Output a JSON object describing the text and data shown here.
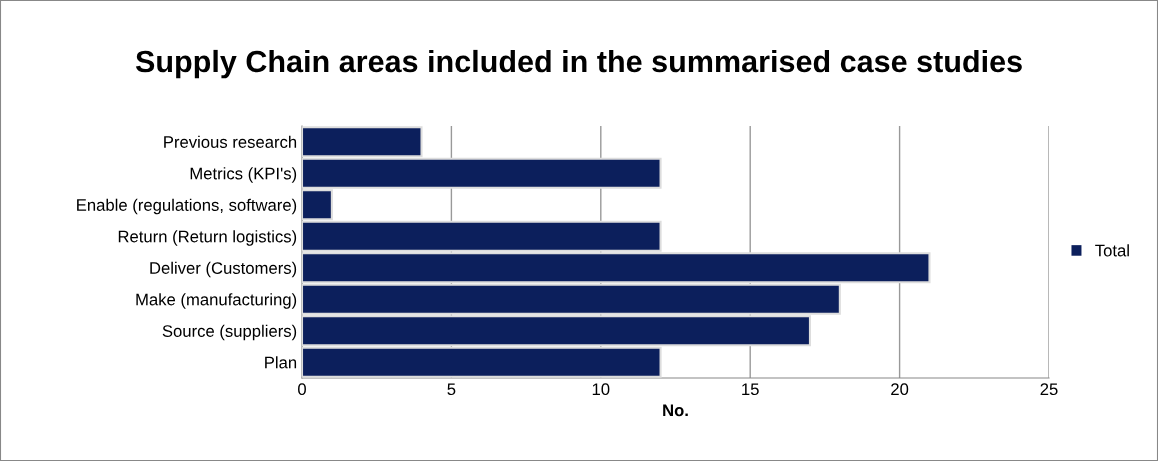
{
  "chart_data": {
    "type": "bar",
    "orientation": "horizontal",
    "title": "Supply Chain areas included in the summarised case studies",
    "xlabel": "No.",
    "categories": [
      "Previous research",
      "Metrics (KPI's)",
      "Enable (regulations, software)",
      "Return (Return logistics)",
      "Deliver (Customers)",
      "Make (manufacturing)",
      "Source (suppliers)",
      "Plan"
    ],
    "series": [
      {
        "name": "Total",
        "color": "#0c1f5c",
        "values": [
          4,
          12,
          1,
          12,
          21,
          18,
          17,
          12
        ]
      }
    ],
    "xlim": [
      0,
      25
    ],
    "xticks": [
      0,
      5,
      10,
      15,
      20,
      25
    ],
    "grid": "x",
    "legend": "right"
  }
}
